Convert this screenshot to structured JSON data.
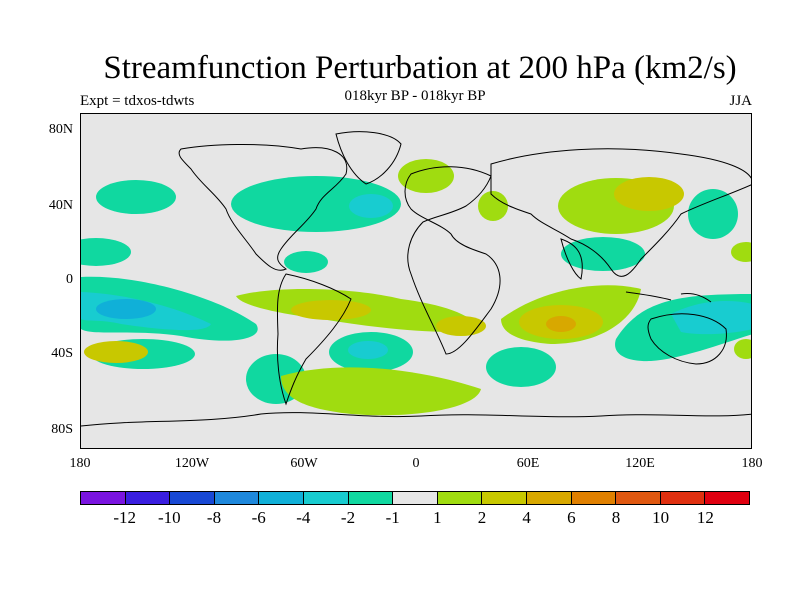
{
  "title": "Streamfunction Perturbation at 200 hPa (km2/s)",
  "subtitle": "018kyr BP - 018kyr BP",
  "left_label": "Expt = tdxos-tdwts",
  "right_label": "JJA",
  "lat_labels": [
    "80N",
    "40N",
    "0",
    "40S",
    "80S"
  ],
  "lon_labels": [
    "180",
    "120W",
    "60W",
    "0",
    "60E",
    "120E",
    "180"
  ],
  "colorbar": {
    "colors": [
      "#7a14e0",
      "#3a1ee0",
      "#1848d4",
      "#1e88dc",
      "#10b0d8",
      "#18ccd0",
      "#10d8a0",
      "#e6e6e6",
      "#a0dc10",
      "#c8c800",
      "#d8a800",
      "#e08000",
      "#e05810",
      "#e03010",
      "#e00010"
    ],
    "labels": [
      "-12",
      "-10",
      "-8",
      "-6",
      "-4",
      "-2",
      "-1",
      "1",
      "2",
      "4",
      "6",
      "8",
      "10",
      "12"
    ]
  },
  "colors": {
    "neutral": "#e6e6e6",
    "neg1": "#10d8a0",
    "neg2": "#18ccd0",
    "neg4": "#10b0d8",
    "pos2": "#a0dc10",
    "pos4": "#c8c800",
    "pos6": "#d8a800"
  }
}
